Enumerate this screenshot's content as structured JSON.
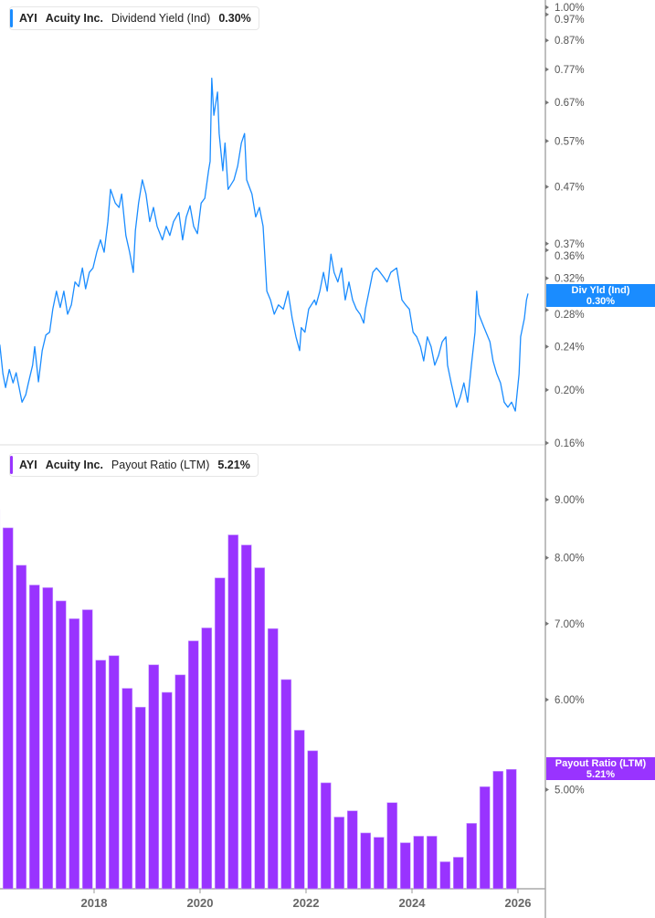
{
  "colors": {
    "yield_line": "#1a8cff",
    "payout_bar": "#9933ff",
    "axis": "#aaaaaa"
  },
  "chart_data": [
    {
      "type": "line",
      "legend": {
        "ticker": "AYI",
        "company": "Acuity Inc.",
        "metric": "Dividend Yield (Ind)",
        "value": "0.30%"
      },
      "last_value_tag": {
        "label": "Div Yld (Ind)",
        "value": "0.30%"
      },
      "y_scale": "log",
      "ylim": [
        0.16,
        1.0
      ],
      "y_unit": "%",
      "y_ticks": [
        "1.00%",
        "0.97%",
        "0.87%",
        "0.77%",
        "0.67%",
        "0.57%",
        "0.47%",
        "0.37%",
        "0.36%",
        "0.32%",
        "0.28%",
        "0.24%",
        "0.20%",
        "0.16%"
      ],
      "grid": false,
      "x": [
        2016.22,
        2016.28,
        2016.33,
        2016.4,
        2016.47,
        2016.53,
        2016.64,
        2016.71,
        2016.76,
        2016.84,
        2016.88,
        2016.95,
        2017.02,
        2017.09,
        2017.16,
        2017.22,
        2017.29,
        2017.36,
        2017.43,
        2017.5,
        2017.57,
        2017.64,
        2017.71,
        2017.78,
        2017.84,
        2017.91,
        2017.98,
        2018.05,
        2018.12,
        2018.19,
        2018.26,
        2018.31,
        2018.4,
        2018.47,
        2018.52,
        2018.6,
        2018.67,
        2018.74,
        2018.78,
        2018.84,
        2018.91,
        2018.98,
        2019.05,
        2019.12,
        2019.19,
        2019.29,
        2019.36,
        2019.43,
        2019.5,
        2019.6,
        2019.67,
        2019.74,
        2019.81,
        2019.88,
        2019.95,
        2020.02,
        2020.09,
        2020.16,
        2020.19,
        2020.22,
        2020.26,
        2020.33,
        2020.36,
        2020.43,
        2020.47,
        2020.53,
        2020.64,
        2020.71,
        2020.78,
        2020.84,
        2020.88,
        2020.98,
        2021.05,
        2021.12,
        2021.19,
        2021.22,
        2021.26,
        2021.33,
        2021.4,
        2021.48,
        2021.57,
        2021.66,
        2021.74,
        2021.81,
        2021.88,
        2021.91,
        2021.98,
        2022.05,
        2022.16,
        2022.19,
        2022.26,
        2022.33,
        2022.4,
        2022.47,
        2022.53,
        2022.6,
        2022.67,
        2022.74,
        2022.81,
        2022.88,
        2022.95,
        2023.02,
        2023.09,
        2023.12,
        2023.19,
        2023.26,
        2023.33,
        2023.4,
        2023.47,
        2023.53,
        2023.6,
        2023.71,
        2023.81,
        2023.88,
        2023.95,
        2024.02,
        2024.09,
        2024.16,
        2024.22,
        2024.29,
        2024.36,
        2024.43,
        2024.5,
        2024.57,
        2024.64,
        2024.67,
        2024.74,
        2024.78,
        2024.84,
        2024.91,
        2024.98,
        2025.05,
        2025.12,
        2025.19,
        2025.22,
        2025.26,
        2025.36,
        2025.47,
        2025.53,
        2025.6,
        2025.67,
        2025.74,
        2025.81,
        2025.88,
        2025.95,
        2026.02,
        2026.05,
        2026.12,
        2026.16,
        2026.19
      ],
      "values": [
        0.242,
        0.214,
        0.202,
        0.218,
        0.206,
        0.215,
        0.19,
        0.196,
        0.206,
        0.222,
        0.24,
        0.207,
        0.236,
        0.252,
        0.255,
        0.281,
        0.303,
        0.283,
        0.303,
        0.275,
        0.286,
        0.315,
        0.309,
        0.334,
        0.306,
        0.328,
        0.334,
        0.357,
        0.376,
        0.357,
        0.406,
        0.465,
        0.439,
        0.431,
        0.456,
        0.383,
        0.357,
        0.328,
        0.391,
        0.439,
        0.484,
        0.456,
        0.406,
        0.431,
        0.398,
        0.376,
        0.398,
        0.383,
        0.406,
        0.422,
        0.376,
        0.414,
        0.434,
        0.398,
        0.386,
        0.439,
        0.448,
        0.503,
        0.523,
        0.742,
        0.635,
        0.7,
        0.588,
        0.503,
        0.565,
        0.465,
        0.484,
        0.513,
        0.565,
        0.588,
        0.484,
        0.456,
        0.414,
        0.431,
        0.398,
        0.354,
        0.303,
        0.292,
        0.275,
        0.286,
        0.281,
        0.303,
        0.27,
        0.25,
        0.236,
        0.26,
        0.255,
        0.281,
        0.292,
        0.286,
        0.303,
        0.328,
        0.303,
        0.354,
        0.328,
        0.315,
        0.334,
        0.292,
        0.315,
        0.292,
        0.281,
        0.275,
        0.265,
        0.281,
        0.303,
        0.328,
        0.334,
        0.328,
        0.321,
        0.315,
        0.328,
        0.334,
        0.292,
        0.286,
        0.281,
        0.255,
        0.25,
        0.24,
        0.226,
        0.25,
        0.24,
        0.222,
        0.231,
        0.245,
        0.25,
        0.222,
        0.206,
        0.198,
        0.186,
        0.194,
        0.206,
        0.19,
        0.222,
        0.255,
        0.303,
        0.275,
        0.26,
        0.245,
        0.226,
        0.214,
        0.206,
        0.19,
        0.186,
        0.19,
        0.183,
        0.214,
        0.25,
        0.27,
        0.292,
        0.3
      ]
    },
    {
      "type": "bar",
      "legend": {
        "ticker": "AYI",
        "company": "Acuity Inc.",
        "metric": "Payout Ratio (LTM)",
        "value": "5.21%"
      },
      "last_value_tag": {
        "label": "Payout Ratio (LTM)",
        "value": "5.21%"
      },
      "y_scale": "log",
      "ylim": [
        4.09,
        9.91
      ],
      "y_unit": "%",
      "y_ticks": [
        "9.00%",
        "8.00%",
        "7.00%",
        "6.00%",
        "5.00%"
      ],
      "x_ticks": [
        "2018",
        "2020",
        "2022",
        "2024",
        "2026"
      ],
      "grid": false,
      "categories": [
        "2016-02",
        "2016-05",
        "2016-08",
        "2016-11",
        "2017-02",
        "2017-05",
        "2017-08",
        "2017-11",
        "2018-02",
        "2018-05",
        "2018-08",
        "2018-11",
        "2019-02",
        "2019-05",
        "2019-08",
        "2019-11",
        "2020-02",
        "2020-05",
        "2020-08",
        "2020-11",
        "2021-02",
        "2021-05",
        "2021-08",
        "2021-11",
        "2022-02",
        "2022-05",
        "2022-08",
        "2022-11",
        "2023-02",
        "2023-05",
        "2023-08",
        "2023-11",
        "2024-02",
        "2024-05",
        "2024-08",
        "2024-11",
        "2025-02",
        "2025-05",
        "2025-08",
        "2025-11"
      ],
      "values": [
        8.82,
        8.5,
        7.88,
        7.57,
        7.53,
        7.33,
        7.07,
        7.2,
        6.5,
        6.56,
        6.14,
        5.91,
        6.44,
        6.09,
        6.31,
        6.76,
        6.94,
        7.68,
        8.38,
        8.21,
        7.84,
        6.93,
        6.25,
        5.64,
        5.41,
        5.07,
        4.73,
        4.79,
        4.58,
        4.54,
        4.87,
        4.49,
        4.55,
        4.55,
        4.32,
        4.36,
        4.67,
        5.03,
        5.19,
        5.21
      ]
    }
  ]
}
